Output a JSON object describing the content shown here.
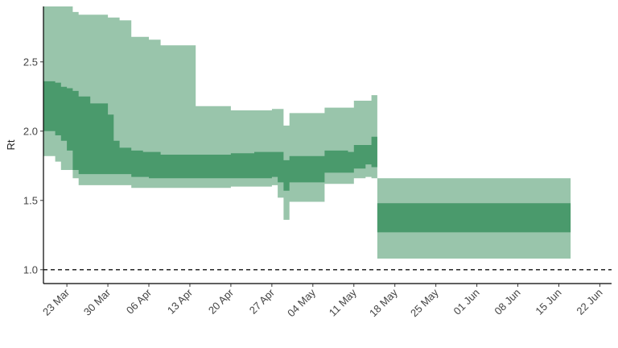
{
  "chart_data": {
    "type": "area",
    "title": "",
    "xlabel": "",
    "ylabel": "Rt",
    "x_ticks": [
      "23 Mar",
      "30 Mar",
      "06 Apr",
      "13 Apr",
      "20 Apr",
      "27 Apr",
      "04 May",
      "11 May",
      "18 May",
      "25 May",
      "01 Jun",
      "08 Jun",
      "15 Jun",
      "22 Jun"
    ],
    "y_ticks": [
      "1.0",
      "1.5",
      "2.0",
      "2.5"
    ],
    "xlim": [
      "2020-03-19",
      "2020-06-24"
    ],
    "ylim": [
      0.9,
      2.9
    ],
    "grid": false,
    "reference_line": {
      "y": 1.0,
      "style": "dashed",
      "color": "#111111"
    },
    "colors": {
      "outer_band": "#99c5ab",
      "inner_band": "#4a9a6c"
    },
    "series": [
      {
        "band": "outer",
        "x": [
          "2020-03-19",
          "2020-03-21",
          "2020-03-22",
          "2020-03-23",
          "2020-03-24",
          "2020-03-25",
          "2020-03-27",
          "2020-03-30",
          "2020-03-31",
          "2020-04-01",
          "2020-04-03",
          "2020-04-05",
          "2020-04-06",
          "2020-04-08",
          "2020-04-09",
          "2020-04-12",
          "2020-04-14",
          "2020-04-20",
          "2020-04-21",
          "2020-04-24",
          "2020-04-27",
          "2020-04-28",
          "2020-04-29",
          "2020-04-30",
          "2020-05-02",
          "2020-05-03",
          "2020-05-06",
          "2020-05-07",
          "2020-05-10",
          "2020-05-11",
          "2020-05-12",
          "2020-05-13",
          "2020-05-14",
          "2020-05-15",
          "2020-06-17"
        ],
        "low": [
          1.82,
          1.78,
          1.72,
          1.72,
          1.66,
          1.61,
          1.61,
          1.61,
          1.61,
          1.61,
          1.59,
          1.59,
          1.59,
          1.59,
          1.59,
          1.59,
          1.59,
          1.6,
          1.6,
          1.6,
          1.61,
          1.52,
          1.36,
          1.49,
          1.49,
          1.49,
          1.62,
          1.62,
          1.62,
          1.66,
          1.66,
          1.67,
          1.66,
          1.08,
          1.08
        ],
        "high": [
          2.9,
          2.9,
          2.9,
          2.9,
          2.86,
          2.84,
          2.84,
          2.82,
          2.82,
          2.8,
          2.68,
          2.68,
          2.66,
          2.62,
          2.62,
          2.62,
          2.18,
          2.15,
          2.15,
          2.15,
          2.16,
          2.16,
          2.04,
          2.13,
          2.13,
          2.13,
          2.17,
          2.17,
          2.17,
          2.22,
          2.22,
          2.22,
          2.26,
          1.66,
          1.66
        ]
      },
      {
        "band": "inner",
        "x": [
          "2020-03-19",
          "2020-03-21",
          "2020-03-22",
          "2020-03-23",
          "2020-03-24",
          "2020-03-25",
          "2020-03-27",
          "2020-03-30",
          "2020-03-31",
          "2020-04-01",
          "2020-04-03",
          "2020-04-05",
          "2020-04-06",
          "2020-04-08",
          "2020-04-09",
          "2020-04-12",
          "2020-04-14",
          "2020-04-20",
          "2020-04-21",
          "2020-04-24",
          "2020-04-27",
          "2020-04-28",
          "2020-04-29",
          "2020-04-30",
          "2020-05-02",
          "2020-05-03",
          "2020-05-06",
          "2020-05-07",
          "2020-05-10",
          "2020-05-11",
          "2020-05-12",
          "2020-05-13",
          "2020-05-14",
          "2020-05-15",
          "2020-06-17"
        ],
        "low": [
          2.0,
          1.97,
          1.93,
          1.86,
          1.72,
          1.69,
          1.69,
          1.69,
          1.69,
          1.69,
          1.67,
          1.67,
          1.66,
          1.66,
          1.66,
          1.66,
          1.66,
          1.66,
          1.66,
          1.66,
          1.67,
          1.63,
          1.57,
          1.63,
          1.63,
          1.63,
          1.7,
          1.7,
          1.7,
          1.73,
          1.73,
          1.76,
          1.74,
          1.27,
          1.27
        ],
        "high": [
          2.36,
          2.35,
          2.32,
          2.31,
          2.29,
          2.25,
          2.2,
          2.12,
          1.93,
          1.88,
          1.86,
          1.85,
          1.85,
          1.83,
          1.83,
          1.83,
          1.83,
          1.84,
          1.84,
          1.85,
          1.85,
          1.85,
          1.79,
          1.82,
          1.82,
          1.82,
          1.86,
          1.86,
          1.85,
          1.9,
          1.9,
          1.9,
          1.96,
          1.48,
          1.48
        ]
      }
    ]
  }
}
